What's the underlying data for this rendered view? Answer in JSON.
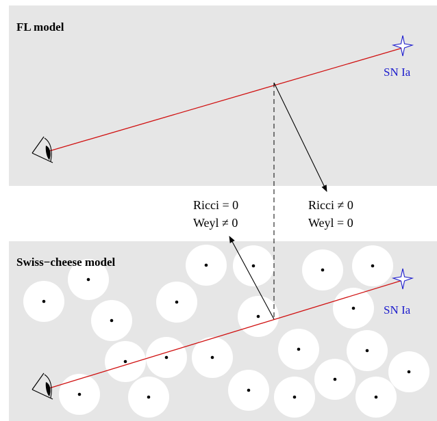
{
  "top_panel": {
    "title": "FL model",
    "sn_label": "SN Ia"
  },
  "bottom_panel": {
    "title": "Swiss−cheese model",
    "sn_label": "SN Ia"
  },
  "left_label": {
    "line1": "Ricci = 0",
    "line2": "Weyl ≠ 0"
  },
  "right_label": {
    "line1": "Ricci ≠ 0",
    "line2": "Weyl = 0"
  },
  "icons": {
    "observer": "eye-icon",
    "source": "star-icon"
  },
  "colors": {
    "panel_bg": "#e6e6e6",
    "hole": "#ffffff",
    "light_ray": "#d01010",
    "sn_star": "#1a1acc",
    "sn_text": "#1a1acc",
    "ink": "#000000"
  }
}
